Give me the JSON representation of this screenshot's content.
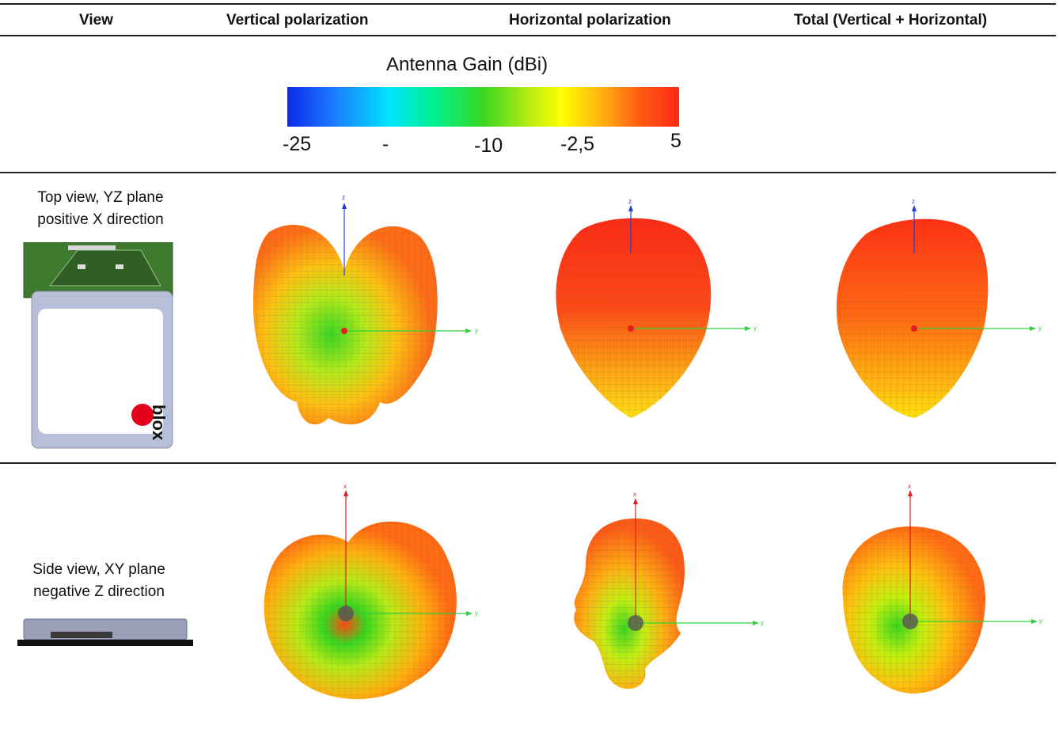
{
  "table": {
    "headers": [
      "View",
      "Vertical polarization",
      "Horizontal polarization",
      "Total (Vertical + Horizontal)"
    ],
    "rows": [
      {
        "label_line1": "Top view, YZ plane",
        "label_line2": "positive X direction"
      },
      {
        "label_line1": "Side view, XY plane",
        "label_line2": "negative Z direction"
      }
    ]
  },
  "legend": {
    "title": "Antenna Gain (dBi)",
    "ticks": [
      "-25",
      "-",
      "-10",
      "-2,5",
      "5"
    ]
  },
  "axes": {
    "x": "x",
    "y": "y",
    "z": "z"
  },
  "module": {
    "brand": "blox"
  },
  "colors": {
    "axis_z": "#1f3fd0",
    "axis_y": "#2ed13a",
    "axis_x": "#e02020",
    "gain_high": "#ff2a14",
    "gain_mid": "#ffb310",
    "gain_low": "#3ad620"
  }
}
